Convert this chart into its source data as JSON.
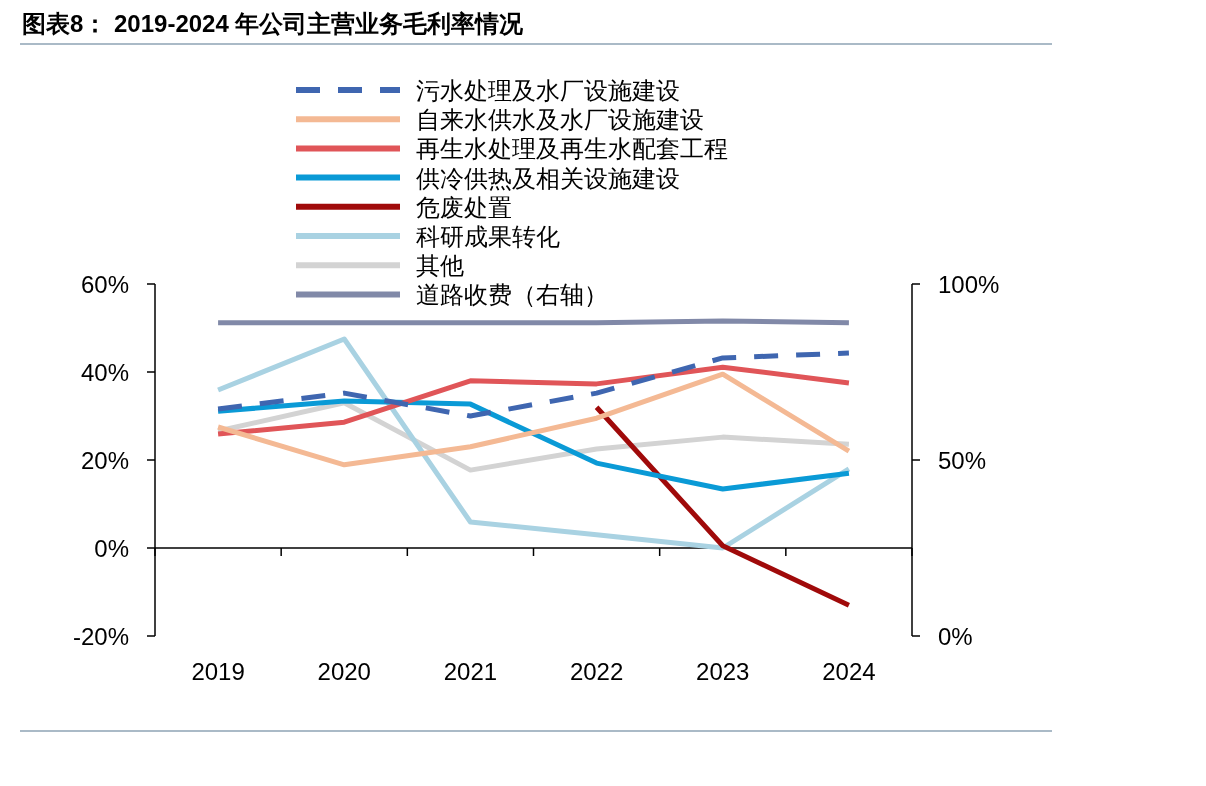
{
  "chart_data": {
    "type": "line",
    "title": "图表8： 2019-2024 年公司主营业务毛利率情况",
    "categories": [
      "2019",
      "2020",
      "2021",
      "2022",
      "2023",
      "2024"
    ],
    "series": [
      {
        "name": "污水处理及水厂设施建设",
        "color": "#3f66b0",
        "line_style": "dashed",
        "values": [
          31.6,
          35.2,
          30.0,
          35.2,
          43.2,
          44.3
        ]
      },
      {
        "name": "自来水供水及水厂设施建设",
        "color": "#f4b994",
        "values": [
          27.5,
          18.9,
          23.0,
          29.5,
          39.5,
          22.0
        ]
      },
      {
        "name": "再生水处理及再生水配套工程",
        "color": "#e05558",
        "values": [
          25.9,
          28.6,
          38.0,
          37.3,
          41.1,
          37.5
        ]
      },
      {
        "name": "供冷供热及相关设施建设",
        "color": "#0a9ad6",
        "values": [
          31.1,
          33.4,
          32.7,
          19.3,
          13.4,
          17.0
        ]
      },
      {
        "name": "危废处置",
        "color": "#a00a0a",
        "values": [
          null,
          null,
          null,
          32.0,
          0.5,
          -13.0
        ]
      },
      {
        "name": "科研成果转化",
        "color": "#a9d2e2",
        "values": [
          35.9,
          47.5,
          5.9,
          3.0,
          0,
          18.0
        ]
      },
      {
        "name": "其他",
        "color": "#d3d3d3",
        "values": [
          26.6,
          33.0,
          17.7,
          22.5,
          25.2,
          23.6
        ]
      },
      {
        "name": "道路收费（右轴）",
        "color": "#8189a8",
        "axis": "y2",
        "values": [
          89,
          89,
          89,
          89,
          89.5,
          89
        ]
      }
    ],
    "ylim": [
      -20,
      60
    ],
    "yticks": [
      {
        "value": -20,
        "label": "-20%"
      },
      {
        "value": 0,
        "label": "0%"
      },
      {
        "value": 20,
        "label": "20%"
      },
      {
        "value": 40,
        "label": "40%"
      },
      {
        "value": 60,
        "label": "60%"
      }
    ],
    "y2lim": [
      0,
      100
    ],
    "y2ticks": [
      {
        "value": 0,
        "label": "0%"
      },
      {
        "value": 50,
        "label": "50%"
      },
      {
        "value": 100,
        "label": "100%"
      }
    ],
    "legend": "top"
  }
}
